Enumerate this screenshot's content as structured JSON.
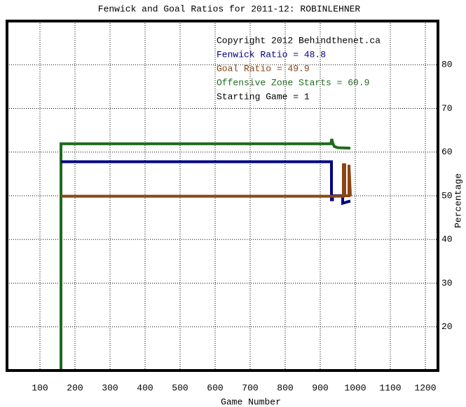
{
  "chart_data": {
    "type": "line",
    "title": "Fenwick and Goal Ratios for 2011-12: ROBINLEHNER",
    "x_label": "Game Number",
    "y_label": "Percentage",
    "xlim": [
      6,
      1236
    ],
    "ylim": [
      10,
      90
    ],
    "xticks": [
      100,
      200,
      300,
      400,
      500,
      600,
      700,
      800,
      900,
      1000,
      1100,
      1200
    ],
    "yticks": [
      20,
      30,
      40,
      50,
      60,
      70,
      80
    ],
    "grid": true,
    "series": [
      {
        "name": "Offensive Zone Starts",
        "color": "#1e6b1e",
        "x": [
          160,
          160,
          930,
          933,
          936,
          940,
          950,
          986
        ],
        "values": [
          10,
          61.9,
          61.9,
          63,
          62,
          61.3,
          61,
          60.9
        ]
      },
      {
        "name": "Fenwick Ratio",
        "color": "#000080",
        "x": [
          160,
          932,
          932,
          935,
          935,
          964,
          964,
          986
        ],
        "values": [
          57.8,
          57.8,
          49.1,
          49.1,
          50,
          50,
          48.3,
          48.8
        ]
      },
      {
        "name": "Goal Ratio",
        "color": "#8b4513",
        "x": [
          160,
          966,
          966,
          970,
          970,
          982,
          982,
          986
        ],
        "values": [
          49.9,
          49.9,
          57.1,
          57.1,
          50,
          50,
          57.1,
          49.9
        ]
      }
    ],
    "annotations": [
      {
        "text": "Copyright 2012 Behindthenet.ca",
        "color": "#000000"
      },
      {
        "text": "Fenwick Ratio = 48.8",
        "color": "#000080"
      },
      {
        "text": "Goal Ratio = 49.9",
        "color": "#8b4513"
      },
      {
        "text": "Offensive Zone Starts = 60.9",
        "color": "#1e6b1e"
      },
      {
        "text": "Starting Game = 1",
        "color": "#000000"
      }
    ]
  }
}
